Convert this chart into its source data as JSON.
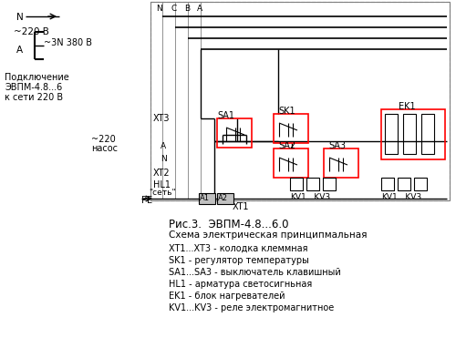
{
  "title": "Рис.3.  ЭВПМ-4.8...6.0",
  "subtitle": "Схема электрическая принципмальная",
  "legend_items": [
    "XT1...XT3 - колодка клеммная",
    "SK1 - регулятор температуры",
    "SA1...SA3 - выключатель клавишный",
    "HL1 - арматура светосигньная",
    "EK1 - блок нагревателей",
    "KV1...KV3 - реле электромагнитное"
  ],
  "bg_color": "#ffffff",
  "line_color": "#000000",
  "border_color": "#808080",
  "red_box_color": "#ff0000",
  "dark_gray": "#404040"
}
